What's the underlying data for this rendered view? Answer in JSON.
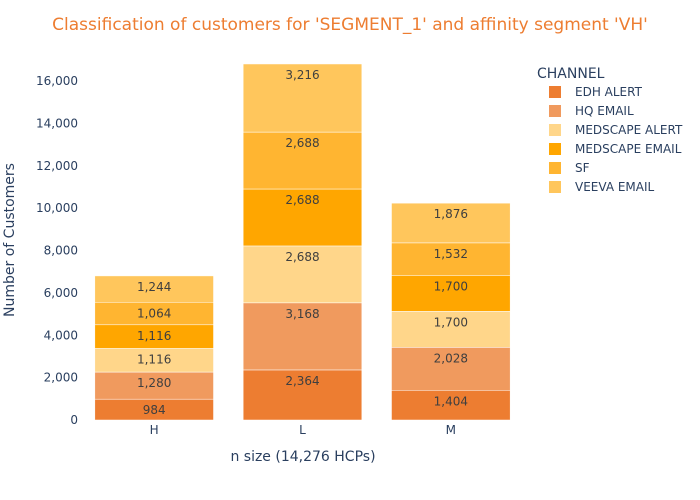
{
  "chart_data": {
    "type": "bar",
    "stacked": true,
    "title": "Classification of customers for 'SEGMENT_1' and affinity segment 'VH'",
    "xlabel": "n size (14,276 HCPs)",
    "ylabel": "Number of Customers",
    "ylim": [
      0,
      17000
    ],
    "yticks": [
      0,
      2000,
      4000,
      6000,
      8000,
      10000,
      12000,
      14000,
      16000
    ],
    "ytick_labels": [
      "0",
      "2,000",
      "4,000",
      "6,000",
      "8,000",
      "10,000",
      "12,000",
      "14,000",
      "16,000"
    ],
    "categories": [
      "H",
      "L",
      "M"
    ],
    "legend_title": "CHANNEL",
    "legend_position": "top-right",
    "title_color": "#ed7d31",
    "series": [
      {
        "name": "EDH ALERT",
        "color": "#ed7d31",
        "values": [
          984,
          2364,
          1404
        ],
        "labels": [
          "984",
          "2,364",
          "1,404"
        ]
      },
      {
        "name": "HQ EMAIL",
        "color": "#f09a5e",
        "values": [
          1280,
          3168,
          2028
        ],
        "labels": [
          "1,280",
          "3,168",
          "2,028"
        ]
      },
      {
        "name": "MEDSCAPE ALERT",
        "color": "#ffd68a",
        "values": [
          1116,
          2688,
          1700
        ],
        "labels": [
          "1,116",
          "2,688",
          "1,700"
        ]
      },
      {
        "name": "MEDSCAPE EMAIL",
        "color": "#ffa600",
        "values": [
          1116,
          2688,
          1700
        ],
        "labels": [
          "1,116",
          "2,688",
          "1,700"
        ]
      },
      {
        "name": "SF",
        "color": "#ffb531",
        "values": [
          1064,
          2688,
          1532
        ],
        "labels": [
          "1,064",
          "2,688",
          "1,532"
        ]
      },
      {
        "name": "VEEVA EMAIL",
        "color": "#ffc65c",
        "values": [
          1244,
          3216,
          1876
        ],
        "labels": [
          "1,244",
          "3,216",
          "1,876"
        ]
      }
    ]
  }
}
